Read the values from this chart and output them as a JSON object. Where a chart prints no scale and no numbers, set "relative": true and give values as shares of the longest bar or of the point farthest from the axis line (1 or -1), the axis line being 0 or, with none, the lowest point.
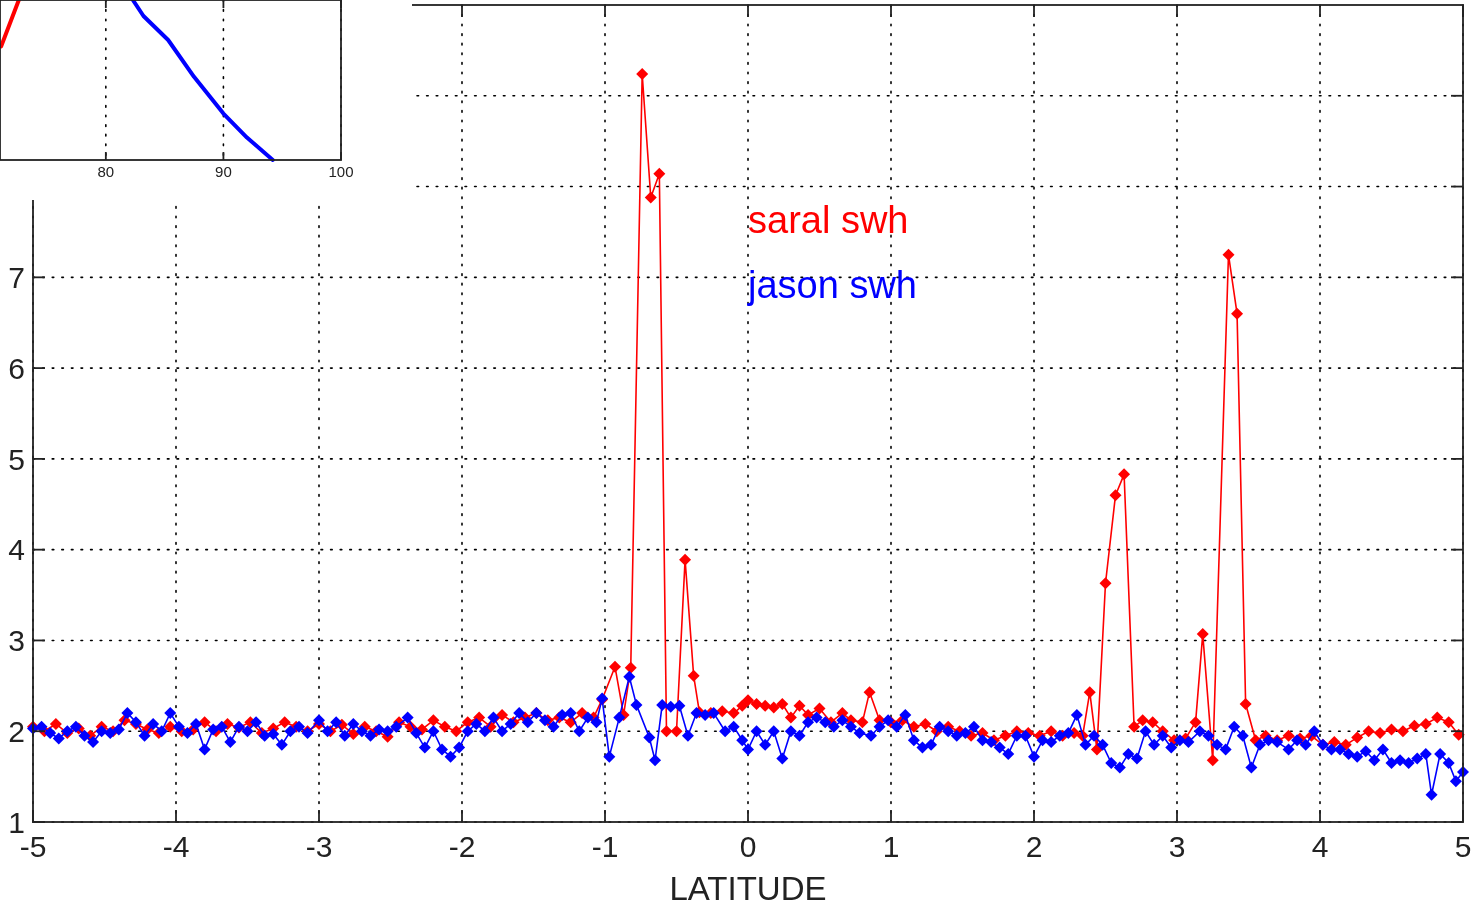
{
  "chart_data": [
    {
      "type": "line",
      "relative": true,
      "xlim": [
        71,
        100
      ],
      "xticks": [
        80,
        90,
        100
      ],
      "grid": "x",
      "tick_labels": "x",
      "marker": "none",
      "line_style": "solid",
      "series": [
        {
          "color": "#ff0000",
          "x": [
            71.1,
            72.6
          ],
          "values": [
            0.71,
            1
          ]
        },
        {
          "color": "#0000ff",
          "x": [
            82.3,
            83.2,
            85.3,
            87.5,
            90.0,
            92.0,
            94.2
          ],
          "values": [
            1,
            0.9,
            0.75,
            0.52,
            0.29,
            0.14,
            0
          ]
        }
      ]
    },
    {
      "type": "line",
      "xlabel": "LATITUDE",
      "xlim": [
        -5,
        5
      ],
      "xticks": [
        -5,
        -4,
        -3,
        -2,
        -1,
        0,
        1,
        2,
        3,
        4,
        5
      ],
      "ylim": [
        1,
        10
      ],
      "yticks": [
        1,
        2,
        3,
        4,
        5,
        6,
        7,
        {
          "value": 8,
          "label": null
        },
        {
          "value": 9,
          "label": null
        }
      ],
      "grid": true,
      "legend": "top",
      "marker": "diamond",
      "line_style": "solid",
      "series": [
        {
          "name": "saral swh",
          "color": "#ff0000",
          "x": [
            -5,
            -4.92,
            -4.84,
            -4.76,
            -4.68,
            -4.6,
            -4.52,
            -4.44,
            -4.36,
            -4.28,
            -4.2,
            -4.12,
            -4.04,
            -3.96,
            -3.88,
            -3.8,
            -3.72,
            -3.64,
            -3.56,
            -3.48,
            -3.4,
            -3.32,
            -3.24,
            -3.16,
            -3.08,
            -3.0,
            -2.92,
            -2.84,
            -2.76,
            -2.68,
            -2.6,
            -2.52,
            -2.44,
            -2.36,
            -2.28,
            -2.2,
            -2.12,
            -2.04,
            -1.96,
            -1.88,
            -1.8,
            -1.72,
            -1.64,
            -1.56,
            -1.48,
            -1.4,
            -1.32,
            -1.24,
            -1.16,
            -1.08,
            -1.02,
            -0.93,
            -0.87,
            -0.82,
            -0.74,
            -0.68,
            -0.62,
            -0.57,
            -0.5,
            -0.44,
            -0.38,
            -0.34,
            -0.26,
            -0.18,
            -0.1,
            -0.04,
            0.0,
            0.06,
            0.12,
            0.18,
            0.24,
            0.3,
            0.36,
            0.42,
            0.5,
            0.58,
            0.66,
            0.72,
            0.8,
            0.85,
            0.92,
            1.0,
            1.08,
            1.16,
            1.24,
            1.32,
            1.4,
            1.48,
            1.56,
            1.64,
            1.72,
            1.8,
            1.88,
            1.96,
            2.04,
            2.12,
            2.2,
            2.28,
            2.34,
            2.39,
            2.44,
            2.5,
            2.57,
            2.63,
            2.7,
            2.76,
            2.83,
            2.9,
            2.98,
            3.06,
            3.13,
            3.18,
            3.25,
            3.36,
            3.42,
            3.48,
            3.55,
            3.62,
            3.7,
            3.78,
            3.86,
            3.94,
            4.02,
            4.1,
            4.18,
            4.26,
            4.34,
            4.42,
            4.5,
            4.58,
            4.66,
            4.74,
            4.82,
            4.9,
            4.97
          ],
          "values": [
            2.05,
            2.0,
            2.08,
            1.98,
            2.03,
            1.95,
            2.05,
            2.0,
            2.12,
            2.08,
            2.02,
            1.98,
            2.05,
            2.0,
            2.02,
            2.1,
            2.0,
            2.08,
            2.04,
            2.1,
            1.98,
            2.03,
            2.1,
            2.05,
            2.0,
            2.08,
            2.0,
            2.07,
            1.97,
            2.05,
            2.0,
            1.94,
            2.1,
            2.05,
            2.02,
            2.12,
            2.05,
            2.0,
            2.1,
            2.15,
            2.05,
            2.18,
            2.1,
            2.15,
            2.2,
            2.12,
            2.15,
            2.1,
            2.2,
            2.15,
            2.35,
            2.71,
            2.18,
            2.7,
            9.24,
            7.88,
            8.14,
            2.0,
            2.0,
            3.89,
            2.61,
            2.21,
            2.2,
            2.22,
            2.2,
            2.28,
            2.34,
            2.3,
            2.28,
            2.26,
            2.3,
            2.15,
            2.28,
            2.18,
            2.25,
            2.1,
            2.2,
            2.12,
            2.1,
            2.43,
            2.12,
            2.1,
            2.12,
            2.05,
            2.08,
            2.0,
            2.05,
            2.0,
            1.95,
            1.98,
            1.9,
            1.95,
            2.0,
            1.98,
            1.95,
            2.0,
            1.95,
            1.98,
            1.95,
            2.43,
            1.8,
            3.63,
            4.6,
            4.83,
            2.05,
            2.12,
            2.1,
            2.0,
            1.9,
            1.92,
            2.1,
            3.07,
            1.68,
            7.25,
            6.6,
            2.3,
            1.9,
            1.95,
            1.9,
            1.95,
            1.92,
            1.95,
            1.85,
            1.88,
            1.85,
            1.93,
            2.0,
            1.98,
            2.02,
            2.0,
            2.06,
            2.08,
            2.15,
            2.1,
            1.96
          ]
        },
        {
          "name": "jason swh",
          "color": "#0000ff",
          "x": [
            -5,
            -4.94,
            -4.88,
            -4.82,
            -4.76,
            -4.7,
            -4.64,
            -4.58,
            -4.52,
            -4.46,
            -4.4,
            -4.34,
            -4.28,
            -4.22,
            -4.16,
            -4.1,
            -4.04,
            -3.98,
            -3.92,
            -3.86,
            -3.8,
            -3.74,
            -3.68,
            -3.62,
            -3.56,
            -3.5,
            -3.44,
            -3.38,
            -3.32,
            -3.26,
            -3.2,
            -3.14,
            -3.08,
            -3.0,
            -2.94,
            -2.88,
            -2.82,
            -2.76,
            -2.7,
            -2.64,
            -2.58,
            -2.52,
            -2.46,
            -2.38,
            -2.32,
            -2.26,
            -2.2,
            -2.14,
            -2.08,
            -2.02,
            -1.96,
            -1.9,
            -1.84,
            -1.78,
            -1.72,
            -1.66,
            -1.6,
            -1.54,
            -1.48,
            -1.42,
            -1.36,
            -1.3,
            -1.24,
            -1.18,
            -1.12,
            -1.06,
            -1.02,
            -0.97,
            -0.9,
            -0.83,
            -0.78,
            -0.69,
            -0.65,
            -0.6,
            -0.54,
            -0.48,
            -0.42,
            -0.36,
            -0.3,
            -0.24,
            -0.16,
            -0.1,
            -0.04,
            0.0,
            0.06,
            0.12,
            0.18,
            0.24,
            0.3,
            0.36,
            0.42,
            0.48,
            0.54,
            0.6,
            0.66,
            0.72,
            0.78,
            0.86,
            0.92,
            0.98,
            1.04,
            1.1,
            1.16,
            1.22,
            1.28,
            1.34,
            1.4,
            1.46,
            1.52,
            1.58,
            1.64,
            1.7,
            1.76,
            1.82,
            1.88,
            1.94,
            2.0,
            2.06,
            2.12,
            2.18,
            2.24,
            2.3,
            2.36,
            2.42,
            2.48,
            2.54,
            2.6,
            2.66,
            2.72,
            2.78,
            2.84,
            2.9,
            2.96,
            3.02,
            3.08,
            3.16,
            3.22,
            3.28,
            3.34,
            3.4,
            3.46,
            3.52,
            3.58,
            3.64,
            3.7,
            3.78,
            3.84,
            3.9,
            3.96,
            4.02,
            4.08,
            4.14,
            4.2,
            4.26,
            4.32,
            4.38,
            4.44,
            4.5,
            4.56,
            4.62,
            4.68,
            4.74,
            4.78,
            4.84,
            4.9,
            4.95,
            5.0
          ],
          "values": [
            2.03,
            2.05,
            1.98,
            1.92,
            2.0,
            2.05,
            1.95,
            1.88,
            2.0,
            1.98,
            2.02,
            2.2,
            2.1,
            1.95,
            2.08,
            2.0,
            2.2,
            2.05,
            1.98,
            2.08,
            1.8,
            2.02,
            2.05,
            1.88,
            2.05,
            2.0,
            2.1,
            1.95,
            1.97,
            1.85,
            2.0,
            2.05,
            1.98,
            2.12,
            2.0,
            2.1,
            1.95,
            2.08,
            2.0,
            1.95,
            2.02,
            2.0,
            2.05,
            2.15,
            1.98,
            1.82,
            2.0,
            1.8,
            1.72,
            1.82,
            2.0,
            2.08,
            2.0,
            2.15,
            2.0,
            2.08,
            2.2,
            2.1,
            2.2,
            2.12,
            2.05,
            2.18,
            2.2,
            2.0,
            2.15,
            2.1,
            2.36,
            1.72,
            2.15,
            2.6,
            2.29,
            1.93,
            1.68,
            2.29,
            2.27,
            2.28,
            1.95,
            2.2,
            2.18,
            2.2,
            2.0,
            2.05,
            1.9,
            1.8,
            2.0,
            1.85,
            2.0,
            1.7,
            2.0,
            1.95,
            2.1,
            2.15,
            2.1,
            2.05,
            2.12,
            2.05,
            1.98,
            1.95,
            2.05,
            2.12,
            2.05,
            2.18,
            1.9,
            1.82,
            1.85,
            2.05,
            2.0,
            1.95,
            1.98,
            2.05,
            1.9,
            1.88,
            1.82,
            1.75,
            1.95,
            1.95,
            1.72,
            1.9,
            1.88,
            1.95,
            1.98,
            2.18,
            1.85,
            1.95,
            1.85,
            1.65,
            1.6,
            1.75,
            1.7,
            2.0,
            1.85,
            1.95,
            1.82,
            1.9,
            1.88,
            2.0,
            1.95,
            1.85,
            1.8,
            2.05,
            1.95,
            1.6,
            1.85,
            1.9,
            1.88,
            1.8,
            1.9,
            1.85,
            2.0,
            1.85,
            1.8,
            1.8,
            1.75,
            1.72,
            1.78,
            1.68,
            1.8,
            1.65,
            1.68,
            1.65,
            1.7,
            1.75,
            1.3,
            1.75,
            1.65,
            1.45,
            1.55
          ]
        }
      ]
    }
  ]
}
